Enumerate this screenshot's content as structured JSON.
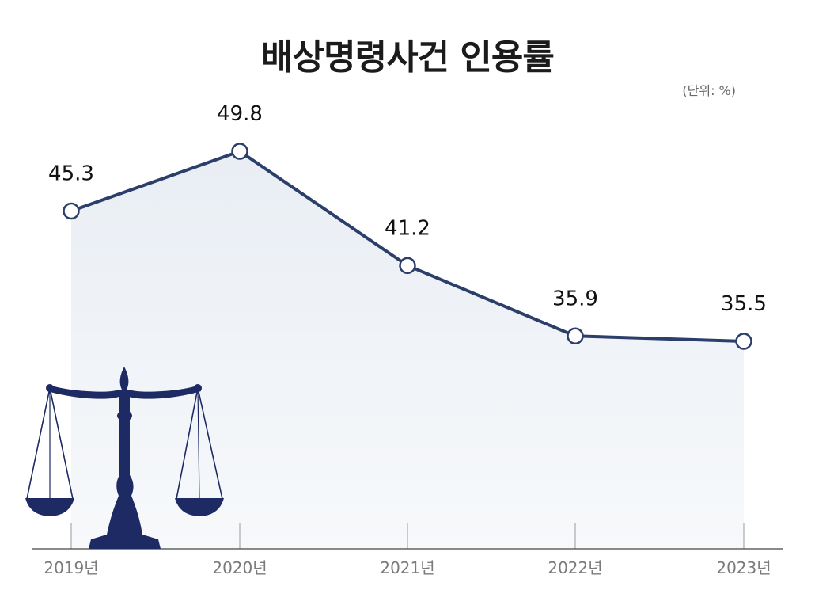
{
  "title": "배상명령사건 인용률",
  "unit_note": "(단위: %)",
  "chart_data": {
    "type": "line",
    "title": "배상명령사건 인용률",
    "categories": [
      "2019년",
      "2020년",
      "2021년",
      "2022년",
      "2023년"
    ],
    "values": [
      45.3,
      49.8,
      41.2,
      35.9,
      35.5
    ],
    "value_labels": [
      "45.3",
      "49.8",
      "41.2",
      "35.9",
      "35.5"
    ],
    "unit": "(단위: %)",
    "grid": false,
    "area_fill": true
  },
  "colors": {
    "line": "#2b3f6a",
    "marker_fill": "#ffffff",
    "area_top": "#e9eef4",
    "area_bottom": "#f7f9fb",
    "scale_icon": "#1d2a63",
    "axis": "#444444"
  },
  "decoration": {
    "icon": "scales-of-justice-icon"
  }
}
